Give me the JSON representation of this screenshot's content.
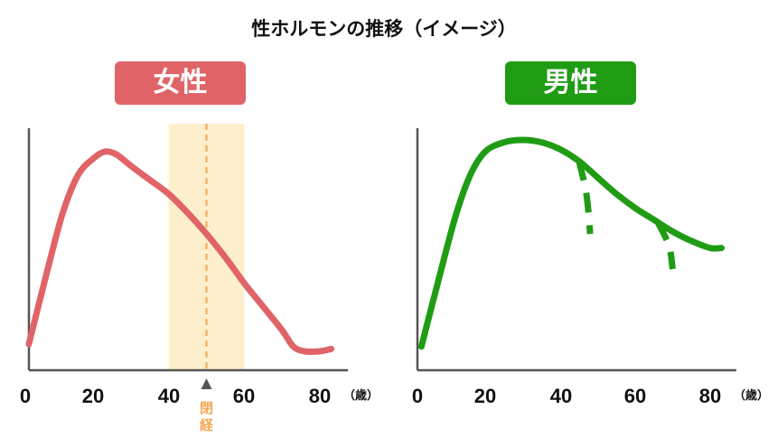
{
  "title": "性ホルモンの推移（イメージ）",
  "colors": {
    "female": "#e06467",
    "male": "#1f9c14",
    "menopause_band": "#fdefcc",
    "menopause_line": "#f4a653",
    "axis": "#555555"
  },
  "chart_data": [
    {
      "type": "line",
      "panel_label": "女性",
      "x_ticks": [
        "0",
        "20",
        "40",
        "60",
        "80"
      ],
      "x_unit": "（歳）",
      "xlim": [
        0,
        85
      ],
      "ylim": [
        0,
        100
      ],
      "series": [
        {
          "points": [
            [
              3,
              8
            ],
            [
              8,
              40
            ],
            [
              12,
              64
            ],
            [
              16,
              80
            ],
            [
              20,
              87
            ],
            [
              23,
              90
            ],
            [
              26,
              89
            ],
            [
              30,
              84
            ],
            [
              35,
              78
            ],
            [
              40,
              72
            ],
            [
              45,
              64
            ],
            [
              50,
              55
            ],
            [
              55,
              45
            ],
            [
              60,
              34
            ],
            [
              65,
              24
            ],
            [
              70,
              14
            ],
            [
              73,
              7
            ],
            [
              76,
              5
            ],
            [
              80,
              5
            ],
            [
              83,
              6
            ]
          ]
        }
      ],
      "annotation": {
        "label": "閉経",
        "range": [
          40,
          60
        ],
        "marker": 50
      }
    },
    {
      "type": "line",
      "panel_label": "男性",
      "x_ticks": [
        "0",
        "20",
        "40",
        "60",
        "80"
      ],
      "x_unit": "（歳）",
      "xlim": [
        0,
        85
      ],
      "ylim": [
        0,
        100
      ],
      "series": [
        {
          "points": [
            [
              3,
              7
            ],
            [
              7,
              32
            ],
            [
              12,
              62
            ],
            [
              16,
              80
            ],
            [
              20,
              90
            ],
            [
              25,
              94
            ],
            [
              30,
              95
            ],
            [
              35,
              94
            ],
            [
              40,
              91
            ],
            [
              45,
              86
            ],
            [
              50,
              79
            ],
            [
              55,
              72
            ],
            [
              60,
              66
            ],
            [
              65,
              61
            ],
            [
              70,
              56
            ],
            [
              75,
              52
            ],
            [
              80,
              49
            ],
            [
              83,
              49
            ]
          ]
        },
        {
          "style": "dashed",
          "points": [
            [
              45,
              86
            ],
            [
              47,
              72
            ],
            [
              48,
              55
            ]
          ]
        },
        {
          "style": "dashed",
          "points": [
            [
              66,
              60
            ],
            [
              69,
              50
            ],
            [
              70,
              40
            ]
          ]
        }
      ]
    }
  ]
}
